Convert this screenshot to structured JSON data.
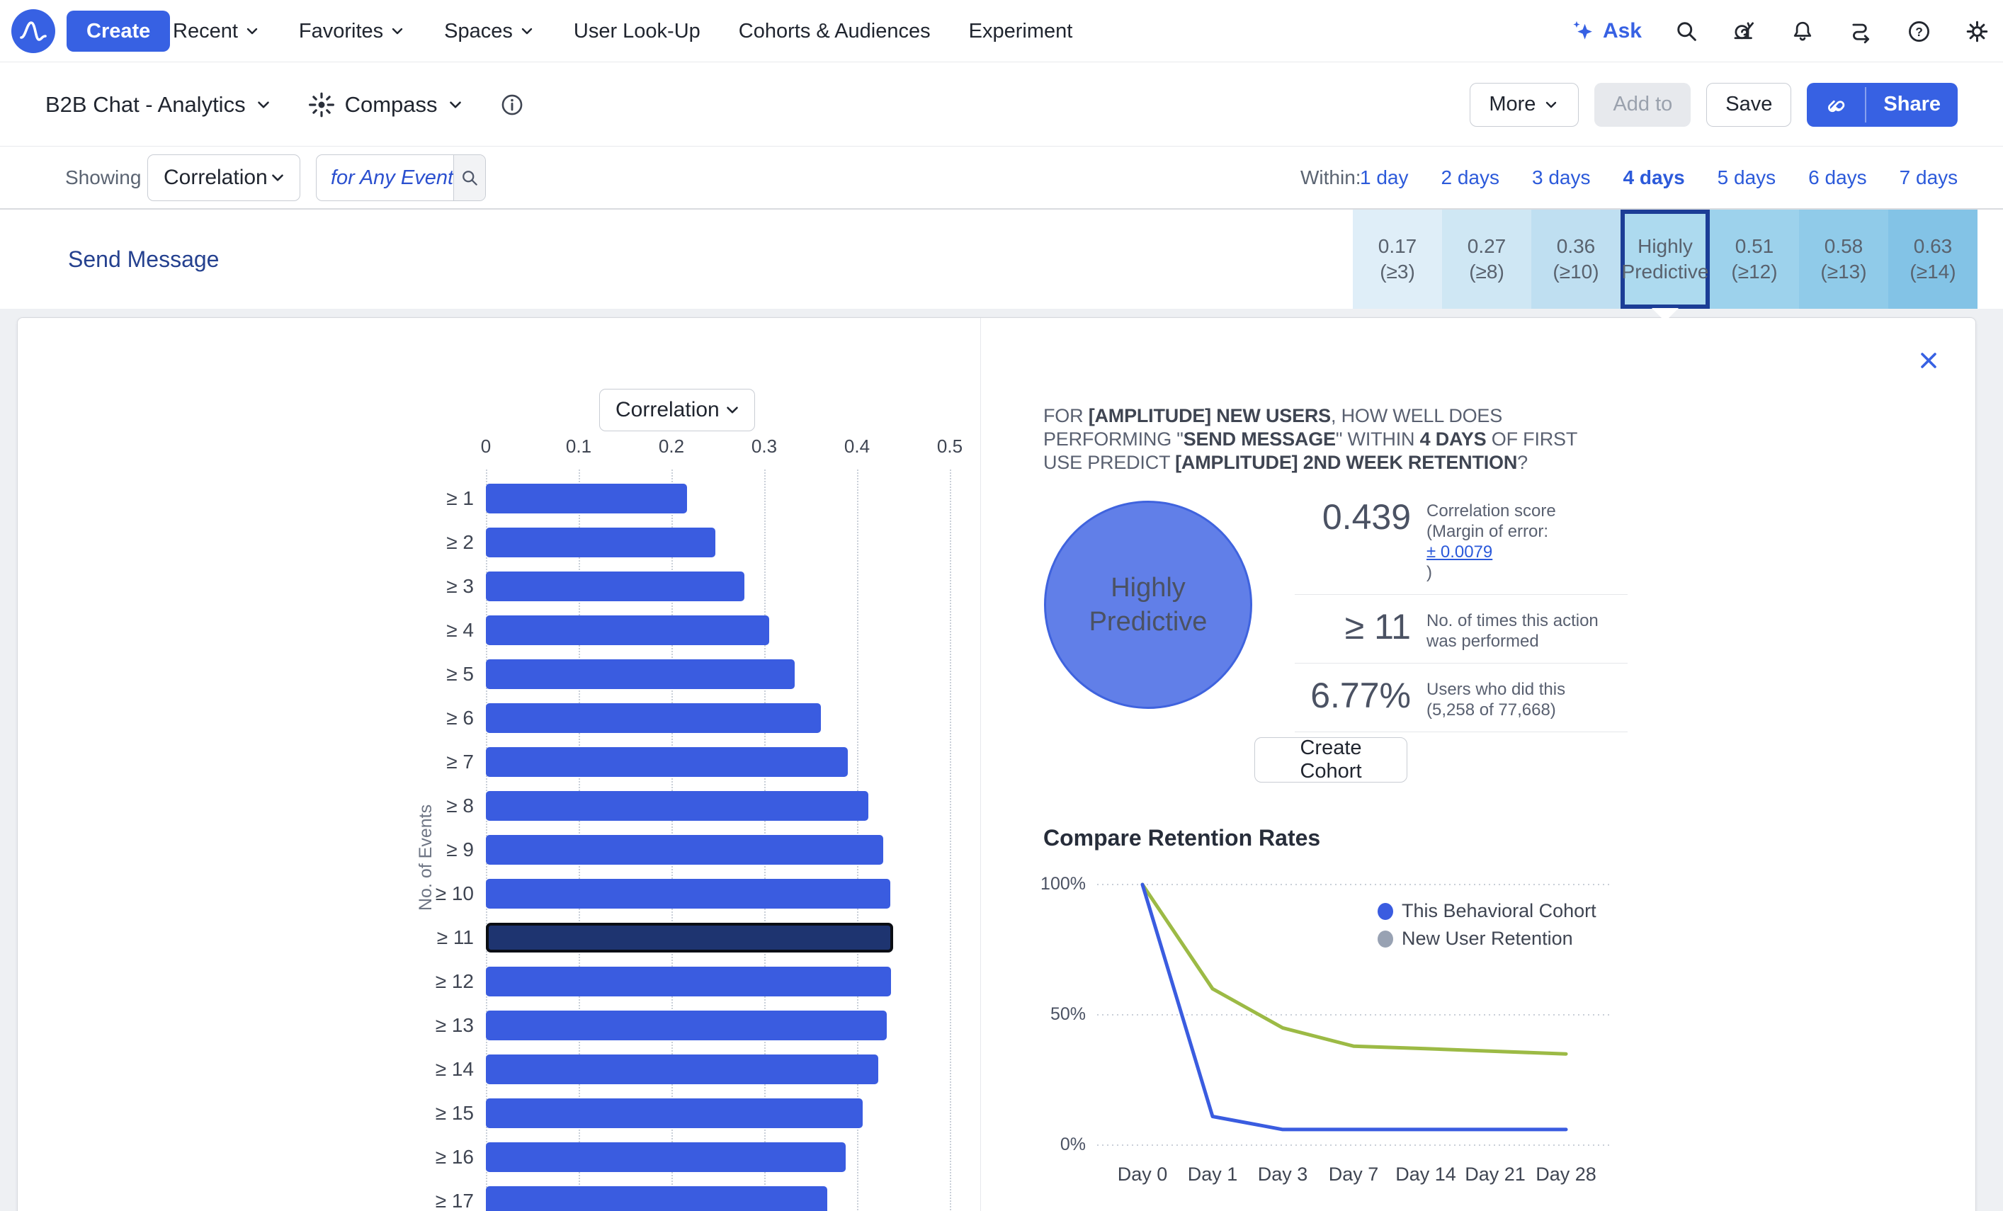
{
  "colors": {
    "accent_blue": "#3761e3",
    "link_blue": "#2c5ada",
    "row_label_navy": "#25418f",
    "heat_ramp": [
      "#dfeef8",
      "#cfe7f4",
      "#bfdff1",
      "#addaef",
      "#9dd2ec",
      "#90cbe9",
      "#83c3e6"
    ],
    "selected_cell_border": "#1c3d96",
    "bar_blue": "#3a5ce0",
    "bar_highlight": "#1e3470",
    "line_blue": "#3a5ce0",
    "line_green": "#9cba45",
    "legend_gray": "#98a2b3",
    "circle_fill": "#617fe8",
    "circle_border": "#3f63de"
  },
  "topnav": {
    "create_label": "Create",
    "items": [
      {
        "label": "Recent",
        "chevron": true
      },
      {
        "label": "Favorites",
        "chevron": true
      },
      {
        "label": "Spaces",
        "chevron": true
      },
      {
        "label": "User Look-Up",
        "chevron": false
      },
      {
        "label": "Cohorts & Audiences",
        "chevron": false
      },
      {
        "label": "Experiment",
        "chevron": false
      }
    ],
    "ask_label": "Ask"
  },
  "toolbar": {
    "project": "B2B Chat - Analytics",
    "mode": "Compass",
    "more": "More",
    "add_to": "Add to",
    "save": "Save",
    "share": "Share"
  },
  "filter_bar": {
    "showing": "Showing",
    "metric": "Correlation",
    "event_value": "for Any Event",
    "within": "Within:",
    "days": [
      "1 day",
      "2 days",
      "3 days",
      "4 days",
      "5 days",
      "6 days",
      "7 days"
    ],
    "active_day": "4 days"
  },
  "matrix": {
    "row_label": "Send Message",
    "cells": [
      {
        "line1": "0.17",
        "line2": "(≥3)",
        "selected": false
      },
      {
        "line1": "0.27",
        "line2": "(≥8)",
        "selected": false
      },
      {
        "line1": "0.36",
        "line2": "(≥10)",
        "selected": false
      },
      {
        "line1": "Highly",
        "line2": "Predictive",
        "selected": true
      },
      {
        "line1": "0.51",
        "line2": "(≥12)",
        "selected": false
      },
      {
        "line1": "0.58",
        "line2": "(≥13)",
        "selected": false
      },
      {
        "line1": "0.63",
        "line2": "(≥14)",
        "selected": false
      }
    ]
  },
  "panel": {
    "metric_dropdown": "Correlation",
    "question_segments": [
      {
        "text": "FOR ",
        "bold": false
      },
      {
        "text": "[AMPLITUDE] NEW USERS",
        "bold": true
      },
      {
        "text": ", HOW WELL DOES PERFORMING \"",
        "bold": false
      },
      {
        "text": "SEND MESSAGE",
        "bold": true
      },
      {
        "text": "\" WITHIN ",
        "bold": false
      },
      {
        "text": "4 DAYS",
        "bold": true
      },
      {
        "text": " OF FIRST USE PREDICT ",
        "bold": false
      },
      {
        "text": "[AMPLITUDE] 2ND WEEK RETENTION",
        "bold": true
      },
      {
        "text": "?",
        "bold": false
      }
    ],
    "badge_line1": "Highly",
    "badge_line2": "Predictive",
    "stats": [
      {
        "value": "0.439",
        "desc_line1": "Correlation score",
        "desc_line2": "(Margin of error:",
        "link": "± 0.0079",
        "desc_close": ")"
      },
      {
        "value": "≥ 11",
        "desc": "No. of times this action was performed"
      },
      {
        "value": "6.77%",
        "desc": "Users who did this (5,258 of 77,668)"
      }
    ],
    "create_cohort": "Create Cohort",
    "retention_title": "Compare Retention Rates",
    "legend": [
      {
        "label": "This Behavioral Cohort",
        "color": "#3a5ce0"
      },
      {
        "label": "New User Retention",
        "color": "#98a2b3"
      }
    ]
  },
  "chart_data": [
    {
      "type": "bar",
      "orientation": "horizontal",
      "title": "Correlation",
      "ylabel": "No. of Events",
      "categories": [
        "≥ 1",
        "≥ 2",
        "≥ 3",
        "≥ 4",
        "≥ 5",
        "≥ 6",
        "≥ 7",
        "≥ 8",
        "≥ 9",
        "≥ 10",
        "≥ 11",
        "≥ 12",
        "≥ 13",
        "≥ 14",
        "≥ 15",
        "≥ 16",
        "≥ 17"
      ],
      "values": [
        0.217,
        0.247,
        0.279,
        0.305,
        0.333,
        0.361,
        0.39,
        0.412,
        0.428,
        0.436,
        0.439,
        0.437,
        0.432,
        0.423,
        0.406,
        0.388,
        0.368
      ],
      "highlighted_index": 10,
      "highlighted_value": 0.439,
      "xlim": [
        0,
        0.55
      ],
      "xticks": [
        0,
        0.1,
        0.2,
        0.3,
        0.4,
        0.5
      ],
      "grid": "dotted-vertical"
    },
    {
      "type": "line",
      "categories": [
        "Day 0",
        "Day 1",
        "Day 3",
        "Day 7",
        "Day 14",
        "Day 21",
        "Day 28"
      ],
      "series": [
        {
          "name": "This Behavioral Cohort",
          "color": "#3a5ce0",
          "values": [
            100,
            11,
            6,
            6,
            6,
            6,
            6
          ]
        },
        {
          "name": "New User Retention",
          "color": "#9cba45",
          "values": [
            100,
            60,
            45,
            38,
            37,
            36,
            35
          ]
        }
      ],
      "ylim": [
        0,
        100
      ],
      "yticks": [
        "0%",
        "50%",
        "100%"
      ],
      "legend_position": "top-right",
      "grid": "dotted-horizontal"
    }
  ]
}
